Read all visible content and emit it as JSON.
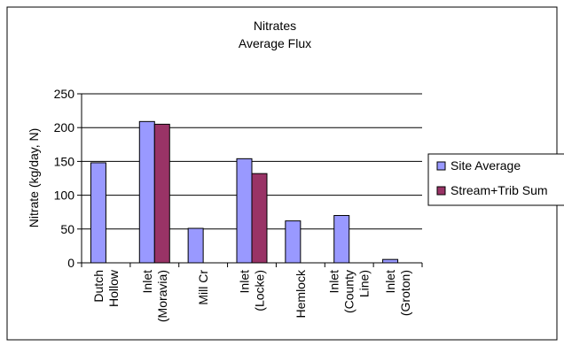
{
  "colors": {
    "site_average": "#9999FF",
    "stream_trib_sum": "#993366",
    "gridline": "#000000",
    "frame": "#000000"
  },
  "chart_data": {
    "type": "bar",
    "title": "Nitrates",
    "subtitle": "Average Flux",
    "ylabel": "Nitrate (kg/day, N)",
    "xlabel": "",
    "ylim": [
      0,
      250
    ],
    "yticks": [
      0,
      50,
      100,
      150,
      200,
      250
    ],
    "grid": true,
    "legend_position": "right",
    "categories": [
      [
        "Dutch",
        "Hollow"
      ],
      [
        "Inlet",
        "(Moravia)"
      ],
      [
        "Mill Cr"
      ],
      [
        "Inlet",
        "(Locke)"
      ],
      [
        "Hemlock"
      ],
      [
        "Inlet",
        "(County",
        "Line)"
      ],
      [
        "Inlet",
        "(Groton)"
      ]
    ],
    "series": [
      {
        "name": "Site Average",
        "values": [
          148,
          209,
          51,
          154,
          62,
          70,
          5
        ]
      },
      {
        "name": "Stream+Trib Sum",
        "values": [
          null,
          205,
          null,
          132,
          null,
          null,
          null
        ]
      }
    ]
  }
}
